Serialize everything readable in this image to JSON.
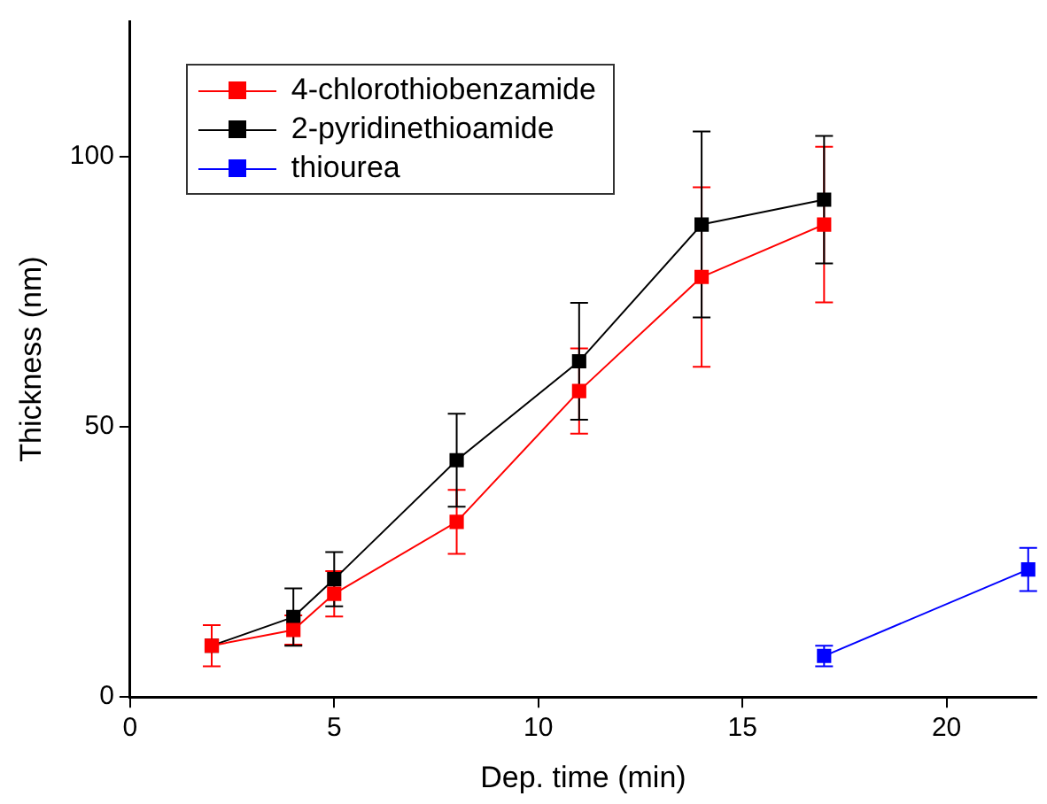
{
  "chart_data": {
    "type": "line",
    "xlabel": "Dep. time (min)",
    "ylabel": "Thickness (nm)",
    "xlim": [
      0,
      22.2
    ],
    "xticks": [
      0,
      5,
      10,
      15,
      20
    ],
    "ylim": [
      0,
      125
    ],
    "yticks": [
      0,
      50,
      100
    ],
    "grid": false,
    "legend": "top left",
    "marker": "square",
    "line_style": "solid",
    "series": [
      {
        "name": "4-chlorothiobenzamide",
        "color": "#ff0000",
        "x": [
          2,
          4,
          5,
          8,
          11,
          14,
          17
        ],
        "values": [
          9.5,
          12.4,
          19.1,
          32.4,
          56.6,
          77.7,
          87.4
        ],
        "errors": [
          3.8,
          2.7,
          4.2,
          5.9,
          7.9,
          16.6,
          14.4
        ]
      },
      {
        "name": "2-pyridinethioamide",
        "color": "#000000",
        "x": [
          2,
          4,
          5,
          8,
          11,
          14,
          17
        ],
        "values": [
          9.5,
          14.8,
          21.8,
          43.8,
          62.1,
          87.4,
          92.0
        ],
        "errors": [
          null,
          5.3,
          5,
          8.6,
          10.8,
          17.2,
          11.8
        ]
      },
      {
        "name": "thiourea",
        "color": "#0000ff",
        "x": [
          17,
          22
        ],
        "values": [
          7.6,
          23.6
        ],
        "errors": [
          1.9,
          4
        ]
      }
    ]
  }
}
